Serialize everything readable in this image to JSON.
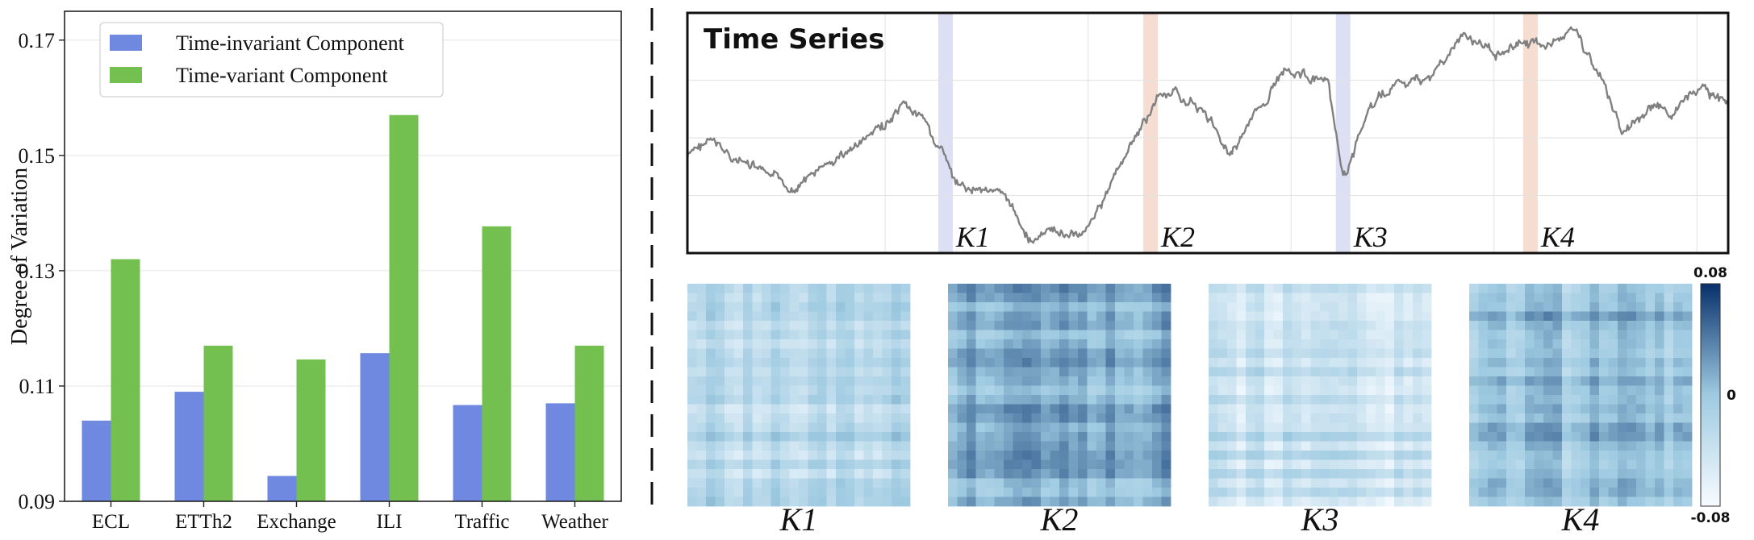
{
  "chart_data": [
    {
      "type": "bar",
      "categories": [
        "ECL",
        "ETTh2",
        "Exchange",
        "ILI",
        "Traffic",
        "Weather"
      ],
      "series": [
        {
          "name": "Time-invariant Component",
          "values": [
            0.104,
            0.109,
            0.0944,
            0.1157,
            0.1067,
            0.107
          ],
          "color": "#6f88e0"
        },
        {
          "name": "Time-variant Component",
          "values": [
            0.132,
            0.117,
            0.1146,
            0.157,
            0.1377,
            0.117
          ],
          "color": "#73c050"
        }
      ],
      "title": "",
      "xlabel": "",
      "ylabel": "Degree of Variation",
      "ylim": [
        0.09,
        0.175
      ],
      "yticks": [
        "0.09",
        "0.11",
        "0.13",
        "0.15",
        "0.17"
      ],
      "ytick_values": [
        0.09,
        0.11,
        0.13,
        0.15,
        0.17
      ],
      "grid": true,
      "legend_position": "top-left"
    },
    {
      "type": "line",
      "title": "Time Series",
      "series": [
        {
          "color": "#808080"
        }
      ],
      "anchors": [
        [
          0,
          0.6
        ],
        [
          0.02,
          0.53
        ],
        [
          0.05,
          0.62
        ],
        [
          0.1,
          0.73
        ],
        [
          0.13,
          0.65
        ],
        [
          0.17,
          0.53
        ],
        [
          0.21,
          0.4
        ],
        [
          0.225,
          0.44
        ],
        [
          0.245,
          0.58
        ],
        [
          0.26,
          0.74
        ],
        [
          0.29,
          0.72
        ],
        [
          0.31,
          0.8
        ],
        [
          0.33,
          0.95
        ],
        [
          0.35,
          0.91
        ],
        [
          0.375,
          0.93
        ],
        [
          0.4,
          0.78
        ],
        [
          0.42,
          0.6
        ],
        [
          0.44,
          0.45
        ],
        [
          0.455,
          0.33
        ],
        [
          0.475,
          0.35
        ],
        [
          0.495,
          0.4
        ],
        [
          0.52,
          0.58
        ],
        [
          0.55,
          0.4
        ],
        [
          0.575,
          0.22
        ],
        [
          0.615,
          0.3
        ],
        [
          0.63,
          0.7
        ],
        [
          0.655,
          0.4
        ],
        [
          0.68,
          0.3
        ],
        [
          0.71,
          0.28
        ],
        [
          0.745,
          0.1
        ],
        [
          0.775,
          0.16
        ],
        [
          0.805,
          0.12
        ],
        [
          0.825,
          0.14
        ],
        [
          0.85,
          0.06
        ],
        [
          0.875,
          0.25
        ],
        [
          0.9,
          0.5
        ],
        [
          0.925,
          0.4
        ],
        [
          0.945,
          0.42
        ],
        [
          0.975,
          0.32
        ],
        [
          1,
          0.38
        ]
      ],
      "highlights": [
        {
          "label": "K1",
          "position": 0.248,
          "color": "#dde0f5"
        },
        {
          "label": "K2",
          "position": 0.445,
          "color": "#f6ddd2"
        },
        {
          "label": "K3",
          "position": 0.63,
          "color": "#dde0f5"
        },
        {
          "label": "K4",
          "position": 0.81,
          "color": "#f6ddd2"
        }
      ],
      "grid": true
    },
    {
      "type": "heatmap",
      "matrices": [
        {
          "label": "K1",
          "base": 0.35
        },
        {
          "label": "K2",
          "base": 0.58
        },
        {
          "label": "K3",
          "base": 0.27
        },
        {
          "label": "K4",
          "base": 0.55
        }
      ],
      "colorbar": {
        "max_label": "0.08",
        "mid_label": "0",
        "min_label": "-0.08",
        "low_color": "#f7fbff",
        "high_color": "#08306b"
      }
    }
  ]
}
